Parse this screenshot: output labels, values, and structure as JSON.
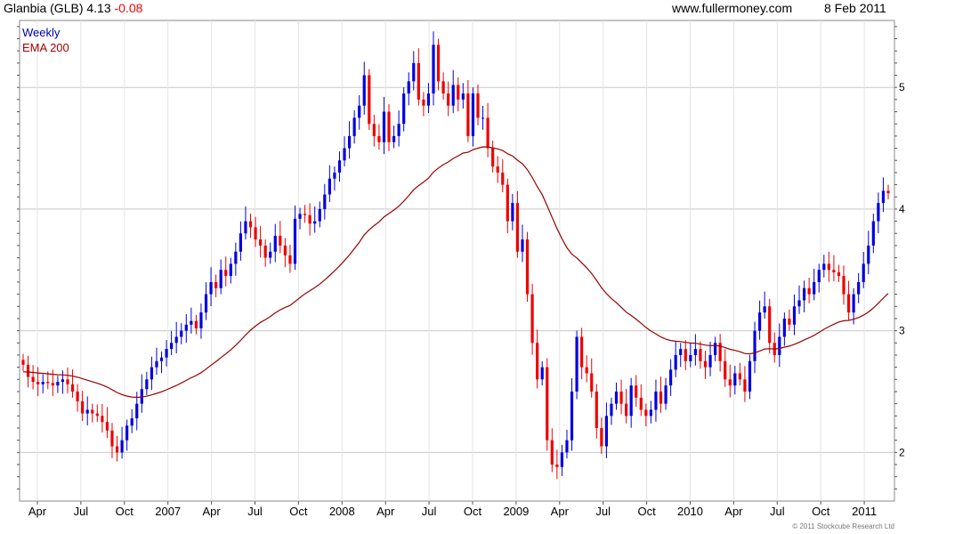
{
  "header": {
    "title": "Glanbia (GLB) 4.13",
    "change": "-0.08",
    "site": "www.fullermoney.com",
    "date": "8 Feb 2011"
  },
  "legend": {
    "weekly": "Weekly",
    "ema": "EMA 200"
  },
  "copyright": "© 2011 Stockcube Research Ltd",
  "colors": {
    "up": "#0000e0",
    "down": "#ee0000",
    "ema": "#990000",
    "grid": "#c8c8c8",
    "change": "#ff0000",
    "legend_weekly": "#0000aa",
    "legend_ema": "#aa0000"
  },
  "chart_data": {
    "type": "candlestick",
    "ylim": [
      1.6,
      5.55
    ],
    "y_ticks": [
      "2",
      "3",
      "4",
      "5"
    ],
    "x_ticks": [
      "Apr",
      "Jul",
      "Oct",
      "2007",
      "Apr",
      "Jul",
      "Oct",
      "2008",
      "Apr",
      "Jul",
      "Oct",
      "2009",
      "Apr",
      "Jul",
      "Oct",
      "2010",
      "Apr",
      "Jul",
      "Oct",
      "2011"
    ],
    "grid": true,
    "weekly_close": [
      2.72,
      2.62,
      2.58,
      2.56,
      2.58,
      2.57,
      2.55,
      2.58,
      2.6,
      2.56,
      2.5,
      2.42,
      2.32,
      2.35,
      2.32,
      2.3,
      2.25,
      2.18,
      2.05,
      2.0,
      2.1,
      2.22,
      2.28,
      2.4,
      2.52,
      2.6,
      2.7,
      2.75,
      2.78,
      2.85,
      2.9,
      2.95,
      3.0,
      3.05,
      3.08,
      3.02,
      3.15,
      3.3,
      3.4,
      3.35,
      3.5,
      3.45,
      3.55,
      3.65,
      3.8,
      3.9,
      3.85,
      3.75,
      3.7,
      3.6,
      3.65,
      3.78,
      3.7,
      3.62,
      3.55,
      3.92,
      3.96,
      3.95,
      3.88,
      3.9,
      4.0,
      4.12,
      4.25,
      4.3,
      4.4,
      4.5,
      4.6,
      4.75,
      4.85,
      5.1,
      4.7,
      4.6,
      4.55,
      4.8,
      4.55,
      4.6,
      4.7,
      4.95,
      5.05,
      5.2,
      4.9,
      4.85,
      4.95,
      5.35,
      5.05,
      4.95,
      4.85,
      5.02,
      4.9,
      4.95,
      4.6,
      4.95,
      4.75,
      4.75,
      4.5,
      4.35,
      4.3,
      4.2,
      3.9,
      4.05,
      3.65,
      3.75,
      3.3,
      2.9,
      2.6,
      2.7,
      2.1,
      1.9,
      1.88,
      2.0,
      2.1,
      2.5,
      2.95,
      2.7,
      2.65,
      2.5,
      2.2,
      2.05,
      2.3,
      2.4,
      2.5,
      2.4,
      2.3,
      2.55,
      2.45,
      2.35,
      2.3,
      2.35,
      2.5,
      2.4,
      2.55,
      2.68,
      2.8,
      2.85,
      2.75,
      2.8,
      2.85,
      2.75,
      2.7,
      2.8,
      2.9,
      2.75,
      2.6,
      2.55,
      2.65,
      2.6,
      2.5,
      2.75,
      3.0,
      3.15,
      3.2,
      2.9,
      2.8,
      2.95,
      3.1,
      3.05,
      3.2,
      3.25,
      3.35,
      3.3,
      3.4,
      3.5,
      3.55,
      3.5,
      3.48,
      3.45,
      3.3,
      3.15,
      3.3,
      3.4,
      3.55,
      3.7,
      3.9,
      4.05,
      4.15,
      4.13
    ]
  }
}
